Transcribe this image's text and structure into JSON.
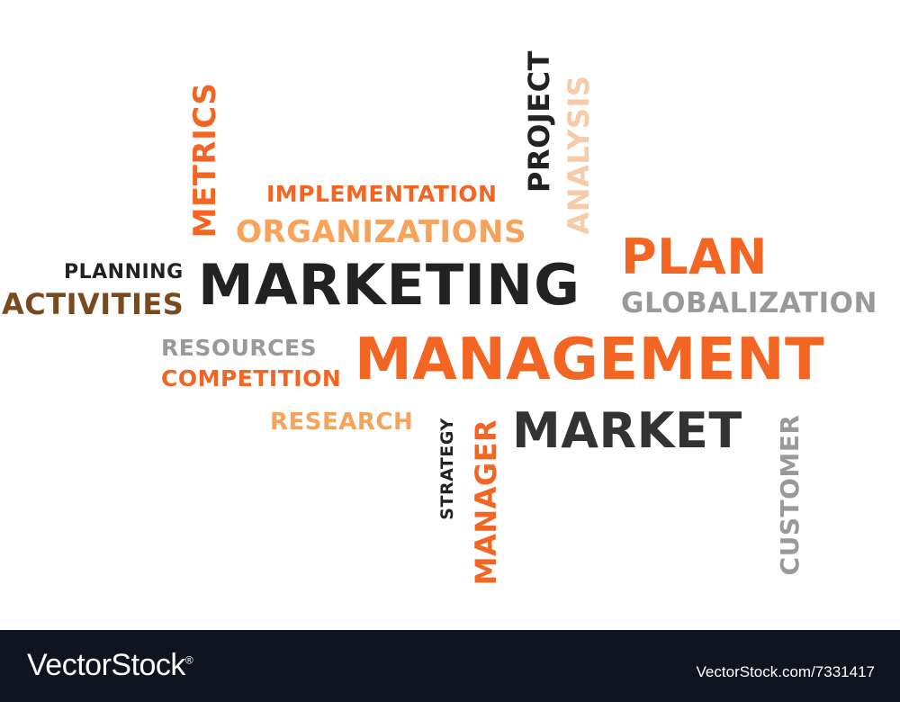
{
  "colors": {
    "dark": "#222222",
    "orange": "#f26522",
    "light_orange": "#f7a35c",
    "peach": "#f8cba8",
    "gray": "#999999",
    "brown": "#7a4a1e",
    "footer_bg": "#0f1420"
  },
  "words": {
    "metrics": "METRICS",
    "implementation": "IMPLEMENTATION",
    "organizations": "ORGANIZATIONS",
    "project": "PROJECT",
    "analysis": "ANALYSIS",
    "plan": "PLAN",
    "planning": "PLANNING",
    "marketing": "MARKETING",
    "activities": "ACTIVITIES",
    "globalization": "GLOBALIZATION",
    "resources": "RESOURCES",
    "management": "MANAGEMENT",
    "competition": "COMPETITION",
    "research": "RESEARCH",
    "strategy": "STRATEGY",
    "manager": "MANAGER",
    "market": "MARKET",
    "customer": "CUSTOMER"
  },
  "footer": {
    "brand": "VectorStock",
    "trademark": "®",
    "image_id": "VectorStock.com/7331417"
  }
}
